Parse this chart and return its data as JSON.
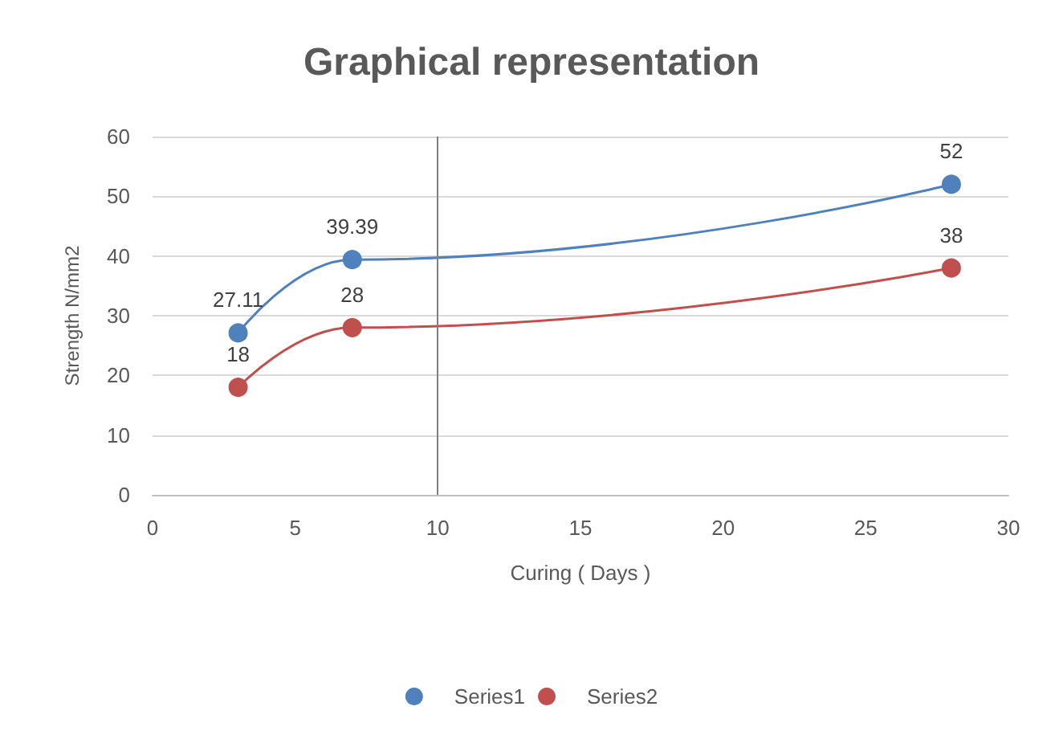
{
  "chart_data": {
    "type": "line",
    "title": "Graphical representation",
    "xlabel": "Curing ( Days )",
    "ylabel": "Strength N/mm2",
    "x": [
      3,
      7,
      28
    ],
    "series": [
      {
        "name": "Series1",
        "color": "#4f81bd",
        "values": [
          27.11,
          39.39,
          52
        ]
      },
      {
        "name": "Series2",
        "color": "#c0504d",
        "values": [
          18,
          28,
          38
        ]
      }
    ],
    "xlim": [
      0,
      30
    ],
    "xticks": [
      0,
      5,
      10,
      15,
      20,
      25,
      30
    ],
    "ylim": [
      0,
      60
    ],
    "yticks": [
      0,
      10,
      20,
      30,
      40,
      50,
      60
    ],
    "ref_lines": [
      {
        "axis": "x",
        "value": 10,
        "color": "#7f7f7f"
      }
    ],
    "grid": "y",
    "legend": "bottom",
    "marker": "circle",
    "data_labels": true
  }
}
